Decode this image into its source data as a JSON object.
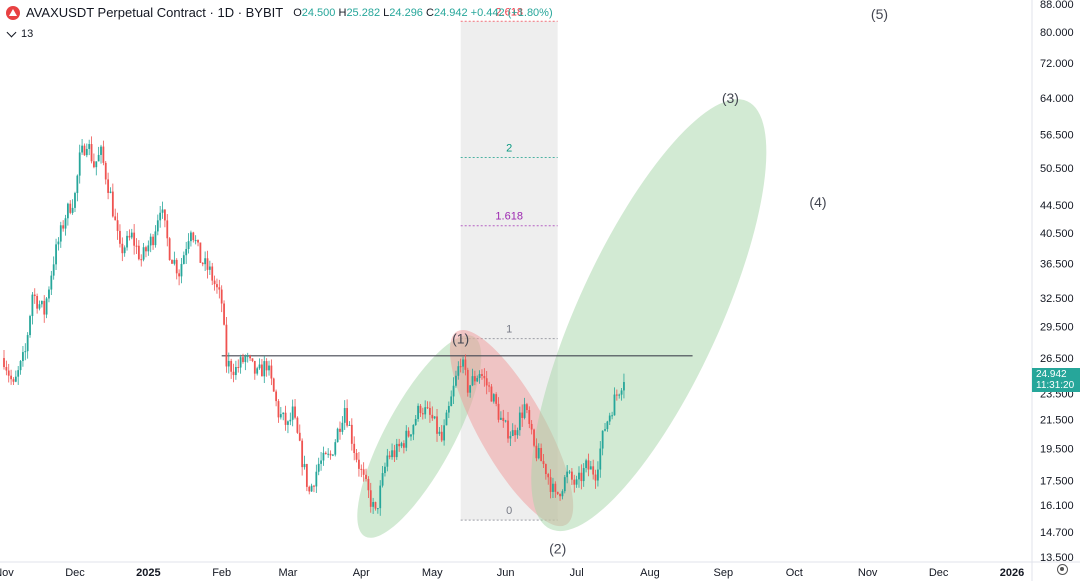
{
  "header": {
    "symbol": "AVAXUSDT Perpetual Contract · 1D · BYBIT",
    "o_label": "O",
    "o": "24.500",
    "h_label": "H",
    "h": "25.282",
    "l_label": "L",
    "l": "24.296",
    "c_label": "C",
    "c": "24.942",
    "change": "+0.442 (+1.80%)",
    "indicator_count": "13"
  },
  "price_tag": {
    "price": "24.942",
    "countdown": "11:31:20"
  },
  "colors": {
    "up": "#26a69a",
    "down": "#ef5350",
    "green_zone": "#a5d6a7",
    "red_zone": "#ef9a9a",
    "fib_box": "#e0e0e0"
  },
  "chart_data": {
    "type": "candlestick",
    "y_scale": "log",
    "ylim": [
      13.5,
      88
    ],
    "y_ticks": [
      88.0,
      80.0,
      72.0,
      64.0,
      56.5,
      50.5,
      44.5,
      40.5,
      36.5,
      32.5,
      29.5,
      26.5,
      23.5,
      21.5,
      19.5,
      17.5,
      16.1,
      14.7,
      13.5
    ],
    "y_tick_labels": [
      "88.000",
      "80.000",
      "72.000",
      "64.000",
      "56.500",
      "50.500",
      "44.500",
      "40.500",
      "36.500",
      "32.500",
      "29.500",
      "26.500",
      "23.500",
      "21.500",
      "19.500",
      "17.500",
      "16.100",
      "14.700",
      "13.500"
    ],
    "x_labels": [
      "Nov",
      "Dec",
      "2025",
      "Feb",
      "Mar",
      "Apr",
      "May",
      "Jun",
      "Jul",
      "Aug",
      "Sep",
      "Oct",
      "Nov",
      "Dec",
      "2026"
    ],
    "x_label_dates": [
      "2024-11-01",
      "2024-12-01",
      "2025-01-01",
      "2025-02-01",
      "2025-03-01",
      "2025-04-01",
      "2025-05-01",
      "2025-06-01",
      "2025-07-01",
      "2025-08-01",
      "2025-09-01",
      "2025-10-01",
      "2025-11-01",
      "2025-12-01",
      "2026-01-01"
    ],
    "x_bold": [
      "2025",
      "2026"
    ],
    "close_path": [
      [
        "2024-11-01",
        26.5
      ],
      [
        "2024-11-05",
        24.0
      ],
      [
        "2024-11-10",
        27.0
      ],
      [
        "2024-11-13",
        33.0
      ],
      [
        "2024-11-18",
        31.0
      ],
      [
        "2024-11-22",
        37.0
      ],
      [
        "2024-11-27",
        43.0
      ],
      [
        "2024-12-01",
        46.0
      ],
      [
        "2024-12-03",
        52.0
      ],
      [
        "2024-12-06",
        55.5
      ],
      [
        "2024-12-09",
        51.0
      ],
      [
        "2024-12-12",
        53.0
      ],
      [
        "2024-12-16",
        46.0
      ],
      [
        "2024-12-20",
        38.0
      ],
      [
        "2024-12-25",
        40.0
      ],
      [
        "2024-12-29",
        37.0
      ],
      [
        "2025-01-03",
        40.0
      ],
      [
        "2025-01-06",
        44.5
      ],
      [
        "2025-01-10",
        38.0
      ],
      [
        "2025-01-14",
        35.5
      ],
      [
        "2025-01-19",
        41.5
      ],
      [
        "2025-01-23",
        37.0
      ],
      [
        "2025-01-27",
        35.5
      ],
      [
        "2025-02-01",
        32.0
      ],
      [
        "2025-02-03",
        26.0
      ],
      [
        "2025-02-07",
        25.5
      ],
      [
        "2025-02-11",
        26.5
      ],
      [
        "2025-02-16",
        25.0
      ],
      [
        "2025-02-20",
        26.0
      ],
      [
        "2025-02-25",
        22.0
      ],
      [
        "2025-03-01",
        21.0
      ],
      [
        "2025-03-03",
        22.0
      ],
      [
        "2025-03-06",
        19.5
      ],
      [
        "2025-03-10",
        16.8
      ],
      [
        "2025-03-14",
        18.5
      ],
      [
        "2025-03-19",
        19.0
      ],
      [
        "2025-03-25",
        22.5
      ],
      [
        "2025-03-29",
        19.5
      ],
      [
        "2025-04-02",
        17.5
      ],
      [
        "2025-04-07",
        15.6
      ],
      [
        "2025-04-12",
        19.0
      ],
      [
        "2025-04-16",
        19.3
      ],
      [
        "2025-04-21",
        20.5
      ],
      [
        "2025-04-26",
        22.5
      ],
      [
        "2025-05-01",
        21.5
      ],
      [
        "2025-05-05",
        20.0
      ],
      [
        "2025-05-09",
        23.0
      ],
      [
        "2025-05-13",
        26.5
      ],
      [
        "2025-05-16",
        24.0
      ],
      [
        "2025-05-21",
        25.3
      ],
      [
        "2025-05-26",
        23.5
      ],
      [
        "2025-05-31",
        21.0
      ],
      [
        "2025-06-04",
        20.5
      ],
      [
        "2025-06-09",
        22.5
      ],
      [
        "2025-06-13",
        19.5
      ],
      [
        "2025-06-18",
        18.2
      ],
      [
        "2025-06-22",
        16.5
      ],
      [
        "2025-06-27",
        17.8
      ],
      [
        "2025-07-01",
        17.2
      ],
      [
        "2025-07-05",
        18.3
      ],
      [
        "2025-07-09",
        18.0
      ],
      [
        "2025-07-13",
        21.0
      ],
      [
        "2025-07-17",
        23.0
      ],
      [
        "2025-07-21",
        24.9
      ]
    ],
    "horizontal_line": {
      "price": 26.7,
      "from": "2025-02-01",
      "to": "2025-08-19"
    },
    "fibonacci": {
      "from": "2025-05-13",
      "to": "2025-06-23",
      "base_price": 15.3,
      "one_price": 28.3,
      "levels": [
        {
          "label": "2.618",
          "price": 83.0,
          "color": "#f23645"
        },
        {
          "label": "2",
          "price": 52.3,
          "color": "#089981"
        },
        {
          "label": "1.618",
          "price": 41.5,
          "color": "#9c27b0"
        },
        {
          "label": "1",
          "price": 28.3,
          "color": "#787b86"
        },
        {
          "label": "0",
          "price": 15.3,
          "color": "#787b86"
        }
      ]
    },
    "wave_labels": [
      {
        "label": "(1)",
        "date": "2025-05-13",
        "price": 28.3
      },
      {
        "label": "(2)",
        "date": "2025-06-23",
        "price": 13.9
      },
      {
        "label": "(3)",
        "date": "2025-09-04",
        "price": 64.0
      },
      {
        "label": "(4)",
        "date": "2025-10-11",
        "price": 45.0
      },
      {
        "label": "(5)",
        "date": "2025-11-06",
        "price": 85.0
      }
    ],
    "zones": [
      {
        "name": "wave-1-zone",
        "color": "green",
        "from": [
          "2025-04-05",
          15.0
        ],
        "to": [
          "2025-05-16",
          27.5
        ]
      },
      {
        "name": "wave-2-zone",
        "color": "red",
        "from": [
          "2025-05-14",
          28.0
        ],
        "to": [
          "2025-06-24",
          15.6
        ]
      },
      {
        "name": "wave-3-zone",
        "color": "green",
        "from": [
          "2025-06-22",
          15.4
        ],
        "to": [
          "2025-09-09",
          61.0
        ]
      }
    ]
  }
}
